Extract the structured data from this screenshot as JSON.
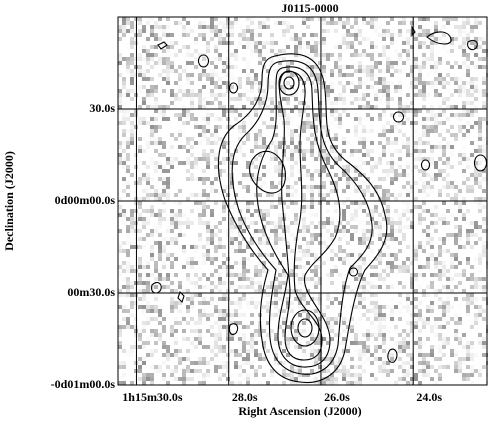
{
  "chart_data": {
    "type": "image",
    "title": "J0115-0000",
    "x_label": "Right Ascension (J2000)",
    "y_label": "Declination (J2000)",
    "xlim": [
      30.4,
      22.4
    ],
    "xticks": [
      {
        "value": 30,
        "label": "1h15m30.0s"
      },
      {
        "value": 28,
        "label": "28.0s"
      },
      {
        "value": 26,
        "label": "26.0s"
      },
      {
        "value": 24,
        "label": "24.0s"
      }
    ],
    "ylim": [
      -60,
      60
    ],
    "yticks": [
      {
        "value": -60,
        "label": "-0d01m00.0s"
      },
      {
        "value": -30,
        "label": "00m30.0s"
      },
      {
        "value": 0,
        "label": "0d00m00.0s"
      },
      {
        "value": 30,
        "label": "30.0s"
      }
    ],
    "grid": true
  }
}
